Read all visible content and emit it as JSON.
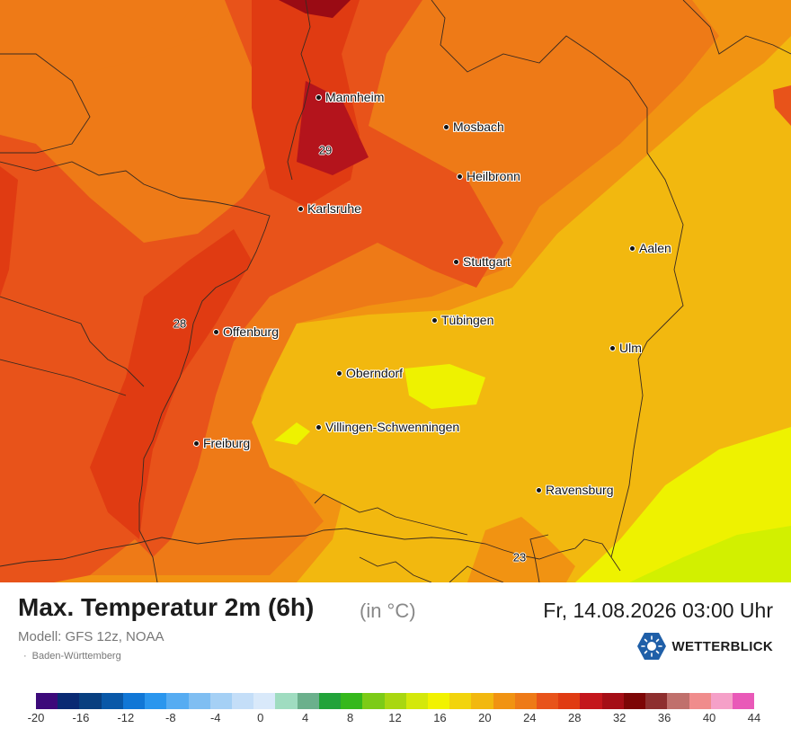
{
  "map": {
    "cities": [
      {
        "name": "Mannheim"
      },
      {
        "name": "Mosbach"
      },
      {
        "name": "Heilbronn"
      },
      {
        "name": "Karlsruhe"
      },
      {
        "name": "Aalen"
      },
      {
        "name": "Stuttgart"
      },
      {
        "name": "Tübingen"
      },
      {
        "name": "Offenburg"
      },
      {
        "name": "Ulm"
      },
      {
        "name": "Oberndorf"
      },
      {
        "name": "Villingen-Schwenningen"
      },
      {
        "name": "Freiburg"
      },
      {
        "name": "Ravensburg"
      }
    ],
    "isolines": [
      "29",
      "28",
      "23"
    ],
    "colors": {
      "t20": "#f2b80f",
      "t22": "#f19312",
      "t24": "#ee7a17",
      "t26": "#e8531a",
      "t28": "#e03b12",
      "t30": "#b4141c",
      "t32": "#9a0b14",
      "t18": "#eef200",
      "t16": "#d2f000"
    }
  },
  "footer": {
    "title": "Max. Temperatur 2m (6h)",
    "unit": "(in °C)",
    "datetime": "Fr, 14.08.2026 03:00 Uhr",
    "model": "Modell: GFS 12z, NOAA",
    "region": "Baden-Württemberg",
    "logo_text": "WETTERBLICK"
  },
  "legend": {
    "colors": [
      "#3c0a7a",
      "#0a2a73",
      "#083f80",
      "#0958a8",
      "#1177d6",
      "#2a96ee",
      "#56acf2",
      "#7fbef2",
      "#a5d0f5",
      "#c4def8",
      "#d9e9fa",
      "#9fdcc0",
      "#6bb08c",
      "#22a33a",
      "#35b81c",
      "#7ccb17",
      "#a9d711",
      "#d4e80b",
      "#f2f200",
      "#f2d40c",
      "#f2b80f",
      "#f19312",
      "#ee7a17",
      "#e8531a",
      "#e03b12",
      "#c4161c",
      "#a50e16",
      "#7d0606",
      "#8e2f2f",
      "#c0706c",
      "#f08c8c",
      "#f5a0c8",
      "#e959b8"
    ],
    "ticks": [
      "-20",
      "-16",
      "-12",
      "-8",
      "-4",
      "0",
      "4",
      "8",
      "12",
      "16",
      "20",
      "24",
      "28",
      "32",
      "36",
      "40",
      "44"
    ]
  }
}
